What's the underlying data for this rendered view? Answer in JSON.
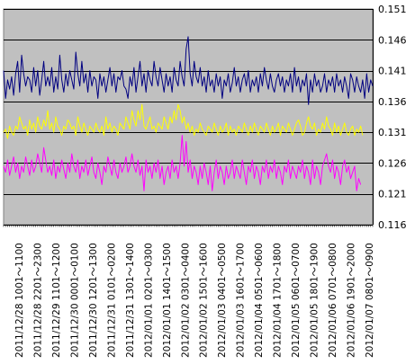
{
  "chart_data": {
    "type": "line",
    "title": "",
    "xlabel": "",
    "ylabel": "",
    "ylim": [
      0.116,
      0.151
    ],
    "y_ticks": [
      0.151,
      0.146,
      0.141,
      0.136,
      0.131,
      0.126,
      0.121,
      0.116
    ],
    "y_tick_labels": [
      "0.151",
      "0.146",
      "0.141",
      "0.136",
      "0.131",
      "0.126",
      "0.121",
      "0.116"
    ],
    "x_tick_labels": [
      "2011/12/28 1001～1100",
      "2011/12/28 2201～2300",
      "2011/12/29 1101～1200",
      "2011/12/30 0001～0100",
      "2011/12/30 1201～1300",
      "2011/12/31 0101～0200",
      "2011/12/31 1301～1400",
      "2012/01/01 0201～0300",
      "2012/01/01 1401～1500",
      "2012/01/02 0301～0400",
      "2012/01/02 1501～1600",
      "2012/01/03 0401～0500",
      "2012/01/03 1601～1700",
      "2012/01/04 0501～0600",
      "2012/01/04 1701～1800",
      "2012/01/05 0601～0700",
      "2012/01/05 1801～1900",
      "2012/01/06 0701～0800",
      "2012/01/06 1901～2000",
      "2012/01/07 0801～0900"
    ],
    "grid": true,
    "legend": "none",
    "background_color": "#c0c0c0",
    "series": [
      {
        "color": "#000080",
        "values": [
          0.141,
          0.1365,
          0.1395,
          0.138,
          0.14,
          0.137,
          0.1405,
          0.1425,
          0.1375,
          0.1435,
          0.1405,
          0.1385,
          0.14,
          0.1395,
          0.1375,
          0.1415,
          0.1385,
          0.141,
          0.137,
          0.1395,
          0.1425,
          0.1385,
          0.14,
          0.1385,
          0.1415,
          0.1375,
          0.14,
          0.138,
          0.1435,
          0.1395,
          0.1375,
          0.1405,
          0.1385,
          0.141,
          0.1395,
          0.138,
          0.144,
          0.1405,
          0.1385,
          0.1425,
          0.139,
          0.1405,
          0.1375,
          0.141,
          0.1385,
          0.14,
          0.1395,
          0.1365,
          0.1405,
          0.1385,
          0.14,
          0.1375,
          0.1395,
          0.1415,
          0.1385,
          0.1405,
          0.1375,
          0.14,
          0.1395,
          0.141,
          0.1385,
          0.138,
          0.1365,
          0.14,
          0.1385,
          0.1415,
          0.1375,
          0.14,
          0.1425,
          0.1385,
          0.1405,
          0.1375,
          0.141,
          0.1395,
          0.1385,
          0.1425,
          0.14,
          0.1385,
          0.1415,
          0.1395,
          0.1375,
          0.1405,
          0.1385,
          0.14,
          0.1375,
          0.1415,
          0.1395,
          0.1385,
          0.1425,
          0.14,
          0.1385,
          0.1445,
          0.1465,
          0.1405,
          0.1385,
          0.1425,
          0.14,
          0.139,
          0.1415,
          0.1385,
          0.14,
          0.1375,
          0.141,
          0.1385,
          0.1395,
          0.1375,
          0.1405,
          0.1385,
          0.14,
          0.1365,
          0.1395,
          0.1385,
          0.1405,
          0.1375,
          0.139,
          0.1415,
          0.1385,
          0.14,
          0.1375,
          0.1395,
          0.1405,
          0.1385,
          0.141,
          0.1375,
          0.1395,
          0.1385,
          0.14,
          0.1375,
          0.1405,
          0.1385,
          0.1415,
          0.1395,
          0.138,
          0.1405,
          0.1385,
          0.1375,
          0.1395,
          0.1405,
          0.1385,
          0.14,
          0.1375,
          0.1395,
          0.1385,
          0.1405,
          0.1375,
          0.1415,
          0.1385,
          0.14,
          0.1375,
          0.1395,
          0.1385,
          0.1405,
          0.1355,
          0.1395,
          0.1375,
          0.1405,
          0.1385,
          0.1395,
          0.1375,
          0.1385,
          0.1405,
          0.1375,
          0.1395,
          0.1385,
          0.14,
          0.1375,
          0.1405,
          0.1385,
          0.1395,
          0.1375,
          0.14,
          0.1385,
          0.1365,
          0.1405,
          0.1395,
          0.1375,
          0.14,
          0.1385,
          0.1375,
          0.1395,
          0.1365,
          0.1405,
          0.1375,
          0.1395,
          0.1385
        ]
      },
      {
        "color": "#ffff00",
        "values": [
          0.131,
          0.1315,
          0.13,
          0.132,
          0.131,
          0.1305,
          0.132,
          0.1315,
          0.1335,
          0.1325,
          0.1315,
          0.132,
          0.1305,
          0.133,
          0.1315,
          0.1325,
          0.131,
          0.1335,
          0.132,
          0.1315,
          0.133,
          0.132,
          0.1345,
          0.1315,
          0.1325,
          0.131,
          0.1335,
          0.132,
          0.1315,
          0.1305,
          0.132,
          0.1315,
          0.133,
          0.1325,
          0.1315,
          0.132,
          0.1305,
          0.1335,
          0.132,
          0.131,
          0.1325,
          0.1315,
          0.1305,
          0.132,
          0.1315,
          0.131,
          0.1325,
          0.1315,
          0.131,
          0.132,
          0.1305,
          0.1335,
          0.1315,
          0.1325,
          0.131,
          0.132,
          0.1315,
          0.1305,
          0.1325,
          0.132,
          0.1315,
          0.1335,
          0.1325,
          0.1315,
          0.1345,
          0.133,
          0.132,
          0.1345,
          0.133,
          0.1355,
          0.132,
          0.1315,
          0.1325,
          0.1335,
          0.1315,
          0.132,
          0.131,
          0.1325,
          0.132,
          0.1315,
          0.1335,
          0.1325,
          0.1315,
          0.1335,
          0.1325,
          0.1345,
          0.133,
          0.1355,
          0.1345,
          0.1325,
          0.1335,
          0.1315,
          0.1325,
          0.131,
          0.132,
          0.1305,
          0.1315,
          0.131,
          0.1325,
          0.1315,
          0.131,
          0.1305,
          0.132,
          0.1315,
          0.131,
          0.1325,
          0.1315,
          0.1305,
          0.132,
          0.131,
          0.1315,
          0.1325,
          0.1305,
          0.132,
          0.131,
          0.1315,
          0.1305,
          0.132,
          0.1315,
          0.131,
          0.1325,
          0.1315,
          0.1305,
          0.132,
          0.131,
          0.1325,
          0.1315,
          0.1305,
          0.132,
          0.1315,
          0.131,
          0.1325,
          0.1315,
          0.1305,
          0.132,
          0.131,
          0.1315,
          0.1325,
          0.1305,
          0.132,
          0.1315,
          0.131,
          0.1325,
          0.1315,
          0.1305,
          0.1315,
          0.1325,
          0.133,
          0.132,
          0.1305,
          0.131,
          0.1325,
          0.1335,
          0.132,
          0.1315,
          0.1325,
          0.1305,
          0.1315,
          0.131,
          0.1325,
          0.1315,
          0.1335,
          0.132,
          0.1315,
          0.1305,
          0.1325,
          0.131,
          0.132,
          0.1305,
          0.1315,
          0.1325,
          0.131,
          0.1305,
          0.1315,
          0.132,
          0.1305,
          0.1315,
          0.131,
          0.132,
          0.1305
        ]
      },
      {
        "color": "#ff00ff",
        "values": [
          0.1255,
          0.1245,
          0.1265,
          0.124,
          0.1255,
          0.127,
          0.1245,
          0.126,
          0.1235,
          0.1255,
          0.1245,
          0.127,
          0.1255,
          0.124,
          0.1265,
          0.1245,
          0.1255,
          0.1275,
          0.126,
          0.1245,
          0.1285,
          0.1265,
          0.1245,
          0.1255,
          0.124,
          0.1265,
          0.1235,
          0.1255,
          0.1245,
          0.1265,
          0.125,
          0.1235,
          0.126,
          0.1245,
          0.1275,
          0.1255,
          0.1245,
          0.1265,
          0.1235,
          0.1255,
          0.1245,
          0.1265,
          0.124,
          0.1255,
          0.127,
          0.1245,
          0.1235,
          0.126,
          0.1245,
          0.1225,
          0.1255,
          0.1245,
          0.127,
          0.1255,
          0.124,
          0.1265,
          0.1245,
          0.1235,
          0.126,
          0.1245,
          0.1255,
          0.127,
          0.1245,
          0.1255,
          0.1275,
          0.1255,
          0.1245,
          0.1265,
          0.124,
          0.1255,
          0.1215,
          0.1265,
          0.1245,
          0.1255,
          0.1235,
          0.126,
          0.1245,
          0.1265,
          0.1235,
          0.1255,
          0.1225,
          0.1245,
          0.1255,
          0.1235,
          0.1265,
          0.1245,
          0.1255,
          0.1235,
          0.126,
          0.1305,
          0.1255,
          0.1295,
          0.1245,
          0.1265,
          0.1235,
          0.1255,
          0.1245,
          0.1225,
          0.1255,
          0.1235,
          0.126,
          0.1245,
          0.1225,
          0.1255,
          0.1215,
          0.1245,
          0.1265,
          0.1235,
          0.1255,
          0.1245,
          0.1225,
          0.1255,
          0.1235,
          0.1245,
          0.1265,
          0.1235,
          0.1255,
          0.1245,
          0.1235,
          0.1265,
          0.1245,
          0.1225,
          0.1255,
          0.1245,
          0.1265,
          0.1235,
          0.1255,
          0.1245,
          0.1225,
          0.1255,
          0.1245,
          0.1265,
          0.1235,
          0.1255,
          0.1245,
          0.1265,
          0.1235,
          0.1255,
          0.1245,
          0.1225,
          0.1255,
          0.1245,
          0.1265,
          0.1235,
          0.1255,
          0.1245,
          0.1235,
          0.1255,
          0.1245,
          0.1265,
          0.1235,
          0.1255,
          0.1245,
          0.1225,
          0.1265,
          0.1235,
          0.1255,
          0.1245,
          0.1225,
          0.1255,
          0.1265,
          0.1275,
          0.1255,
          0.1245,
          0.1265,
          0.1235,
          0.1255,
          0.1245,
          0.1225,
          0.1255,
          0.1265,
          0.1245,
          0.1255,
          0.1235,
          0.1245,
          0.1255,
          0.1215,
          0.1235,
          0.1225
        ]
      }
    ]
  }
}
